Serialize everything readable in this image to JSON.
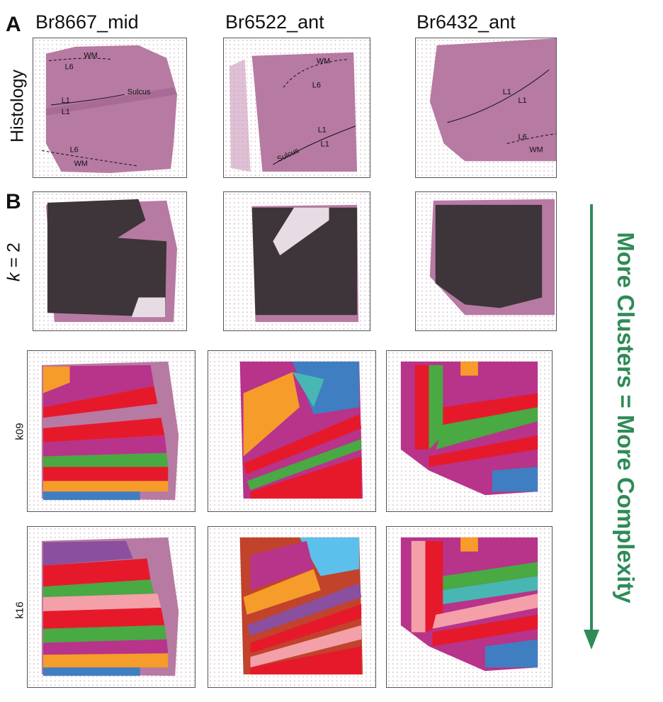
{
  "panels": {
    "a": "A",
    "b": "B"
  },
  "samples": [
    "Br8667_mid",
    "Br6522_ant",
    "Br6432_ant"
  ],
  "rows": {
    "histology": "Histology",
    "k2_italic": "k",
    "k2_rest": " = 2",
    "k09": "k09",
    "k16": "k16"
  },
  "side_label": "More Clusters = More Complexity",
  "annotations": {
    "s1": [
      "WM",
      "L6",
      "L1",
      "L1",
      "Sulcus",
      "L6",
      "WM"
    ],
    "s2": [
      "WM",
      "L6",
      "L1",
      "L1",
      "Sulcus"
    ],
    "s3": [
      "L1",
      "L1",
      "L6",
      "WM"
    ]
  },
  "colors": {
    "tissue": "#b77aa3",
    "tissue_dark": "#9a5c8a",
    "k2_cluster": "#3d3539",
    "k2_other": "#e8dce4",
    "arrow": "#2e8b57",
    "clusters": [
      "#e6192b",
      "#b8338a",
      "#f59c2a",
      "#49a942",
      "#3f7fc1",
      "#48b7b4",
      "#8a4f9e",
      "#f3a0a8",
      "#c1432c",
      "#5bc0eb",
      "#444444",
      "#eac9d4"
    ]
  }
}
